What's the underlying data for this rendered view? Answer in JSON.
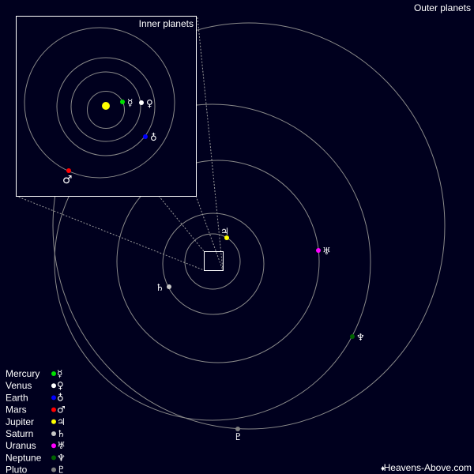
{
  "titles": {
    "outer": "Outer planets",
    "inner": "Inner planets"
  },
  "credit": {
    "icon": "diamond-icon",
    "text": "Heavens-Above.com"
  },
  "colors": {
    "background": "#00001e",
    "orbit": "#8a8a8a",
    "sun": "#ffff00"
  },
  "planets": [
    {
      "name": "Mercury",
      "symbol": "☿",
      "color": "#00e000"
    },
    {
      "name": "Venus",
      "symbol": "♀",
      "color": "#ffffff"
    },
    {
      "name": "Earth",
      "symbol": "♁",
      "color": "#0000ff"
    },
    {
      "name": "Mars",
      "symbol": "♂",
      "color": "#ff0000"
    },
    {
      "name": "Jupiter",
      "symbol": "♃",
      "color": "#ffff00"
    },
    {
      "name": "Saturn",
      "symbol": "♄",
      "color": "#c8c8c8"
    },
    {
      "name": "Uranus",
      "symbol": "♅",
      "color": "#ff00ff"
    },
    {
      "name": "Neptune",
      "symbol": "♆",
      "color": "#006400"
    },
    {
      "name": "Pluto",
      "symbol": "♇",
      "color": "#808080"
    }
  ]
}
